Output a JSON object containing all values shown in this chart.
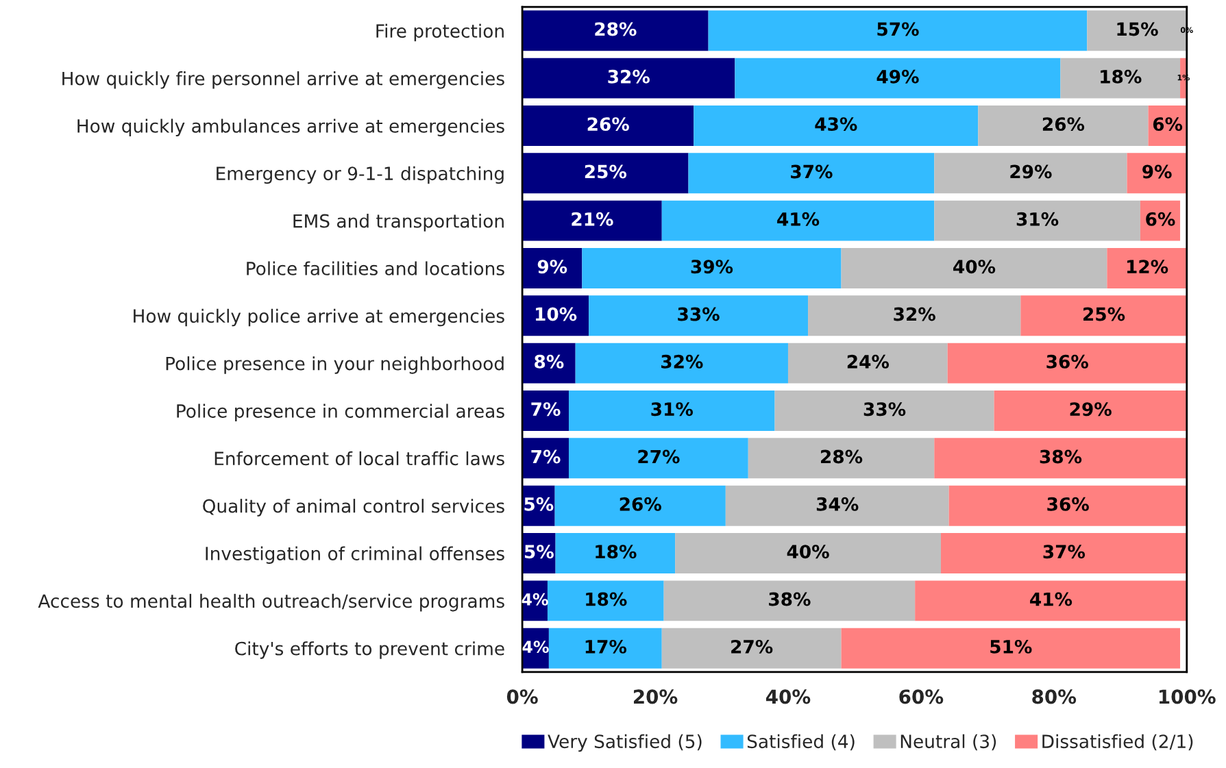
{
  "chart_data": {
    "type": "bar",
    "orientation": "horizontal",
    "stacked": true,
    "categories": [
      "Fire protection",
      "How quickly fire personnel arrive at emergencies",
      "How quickly ambulances arrive at emergencies",
      "Emergency or 9-1-1 dispatching",
      "EMS and transportation",
      "Police facilities and locations",
      "How quickly police arrive at emergencies",
      "Police presence in your neighborhood",
      "Police presence in commercial areas",
      "Enforcement of local traffic laws",
      "Quality of animal control services",
      "Investigation of criminal offenses",
      "Access to mental health outreach/service programs",
      "City's efforts to prevent crime"
    ],
    "series": [
      {
        "name": "Very Satisfied (5)",
        "color": "#000080",
        "values": [
          28,
          32,
          25.8,
          25,
          21,
          9,
          10,
          8,
          7,
          7,
          4.9,
          5,
          3.8,
          4
        ],
        "value_labels": [
          "28%",
          "32%",
          "26%",
          "25%",
          "21%",
          "9%",
          "10%",
          "8%",
          "7%",
          "7%",
          "5%",
          "5%",
          "4%",
          "4%"
        ]
      },
      {
        "name": "Satisfied (4)",
        "color": "#33bbff",
        "values": [
          57,
          49,
          42.8,
          37,
          41,
          39,
          33,
          32,
          31,
          27,
          25.7,
          18,
          17.5,
          17
        ],
        "value_labels": [
          "57%",
          "49%",
          "43%",
          "37%",
          "41%",
          "39%",
          "33%",
          "32%",
          "31%",
          "27%",
          "26%",
          "18%",
          "18%",
          "17%"
        ]
      },
      {
        "name": "Neutral (3)",
        "color": "#bfbfbf",
        "values": [
          15,
          18,
          25.6,
          29,
          31,
          40,
          32,
          24,
          33,
          28,
          33.6,
          40,
          37.8,
          27
        ],
        "value_labels": [
          "15%",
          "18%",
          "26%",
          "29%",
          "31%",
          "40%",
          "32%",
          "24%",
          "33%",
          "28%",
          "34%",
          "40%",
          "38%",
          "27%"
        ]
      },
      {
        "name": "Dissatisfied (2/1)",
        "color": "#ff8080",
        "values": [
          0,
          1,
          5.8,
          9,
          6,
          12,
          25,
          36,
          29,
          38,
          35.8,
          37,
          40.9,
          51
        ],
        "value_labels": [
          "0%",
          "1%",
          "6%",
          "9%",
          "6%",
          "12%",
          "25%",
          "36%",
          "29%",
          "38%",
          "36%",
          "37%",
          "41%",
          "51%"
        ]
      }
    ],
    "xlim": [
      0,
      100
    ],
    "xticks": [
      {
        "value": 0,
        "label": "0%"
      },
      {
        "value": 20,
        "label": "20%"
      },
      {
        "value": 40,
        "label": "40%"
      },
      {
        "value": 60,
        "label": "60%"
      },
      {
        "value": 80,
        "label": "80%"
      },
      {
        "value": 100,
        "label": "100%"
      }
    ],
    "grid": false,
    "legend": "bottom"
  }
}
